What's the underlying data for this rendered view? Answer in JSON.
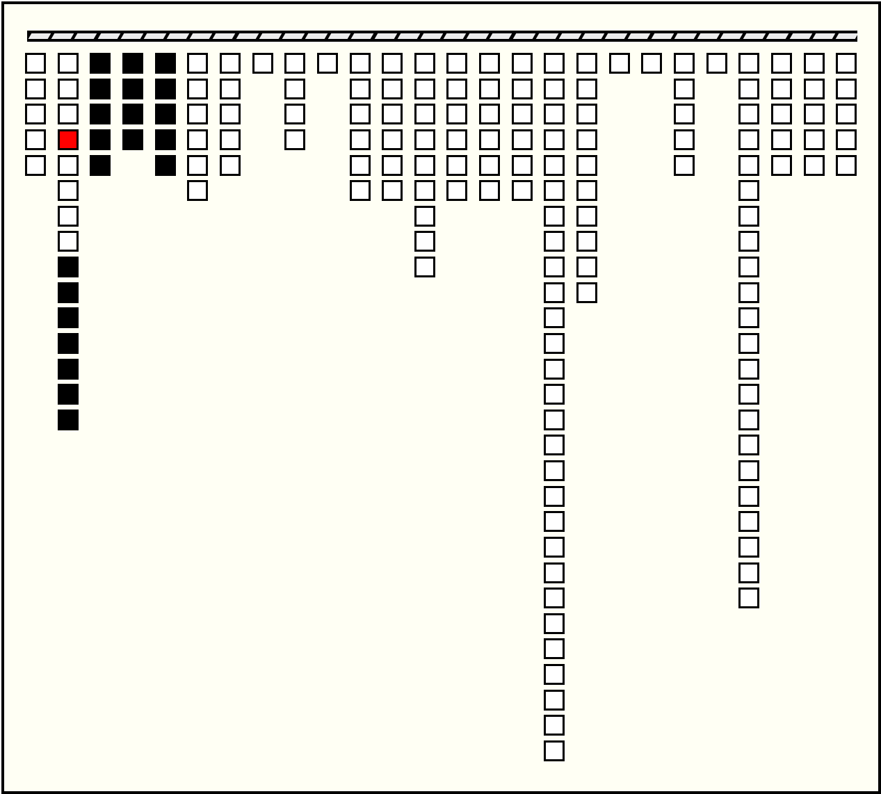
{
  "colors": {
    "background": "#fffff4",
    "empty": "#ffffff",
    "filled": "#000000",
    "selected": "#ff0000",
    "rail": "#ececec"
  },
  "legend_states": {
    "w": "empty",
    "b": "filled",
    "r": "selected"
  },
  "rail_segments": 36,
  "columns": [
    "wwwww",
    "wwwrwwwwbbbbbbb",
    "bbbbb",
    "bbbb",
    "bbbbb",
    "wwwwww",
    "wwwww",
    "w",
    "wwww",
    "w",
    "wwwwww",
    "wwwwww",
    "wwwwwwwww",
    "wwwwww",
    "wwwwww",
    "wwwwww",
    "wwwwwwwwwwwwwwwwwwwwwwwwwwww",
    "wwwwwwwwww",
    "w",
    "w",
    "wwwww",
    "w",
    "wwwwwwwwwwwwwwwwwwwwww",
    "wwwww",
    "wwwww",
    "wwwww"
  ]
}
